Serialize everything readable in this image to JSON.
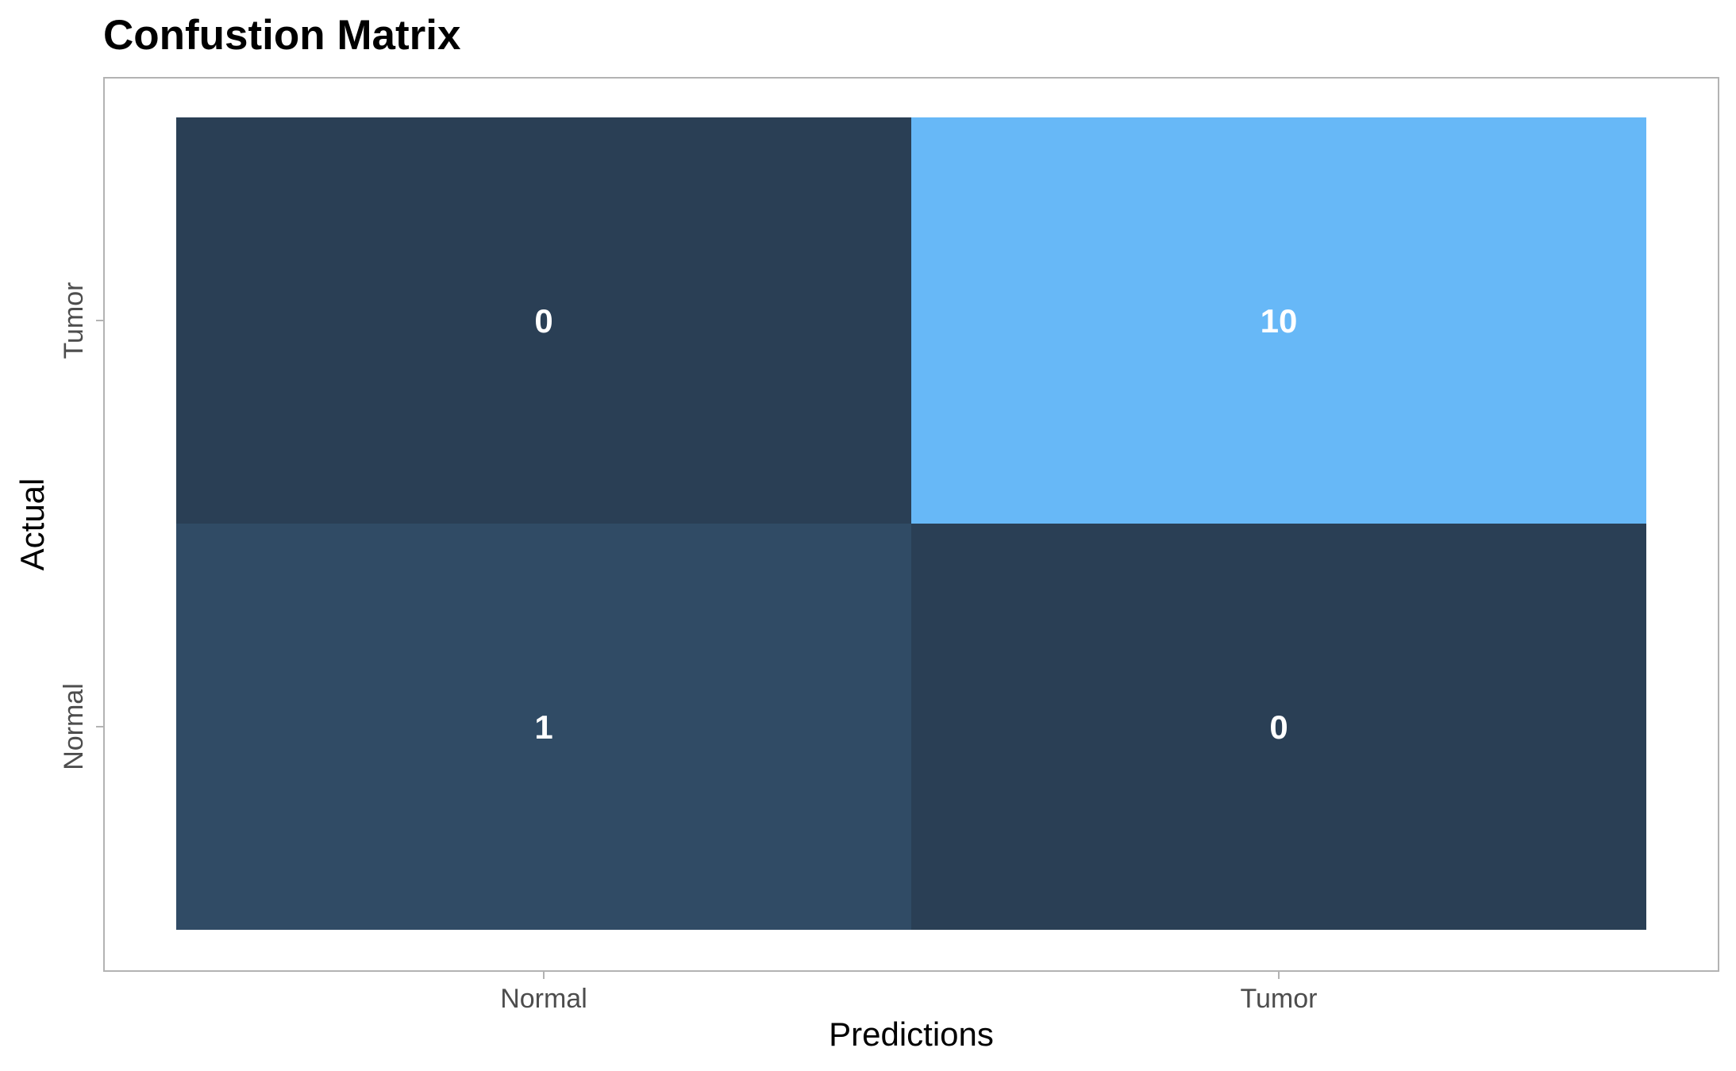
{
  "chart_data": {
    "type": "heatmap",
    "title": "Confustion Matrix",
    "xlabel": "Predictions",
    "ylabel": "Actual",
    "x_categories": [
      "Normal",
      "Tumor"
    ],
    "y_categories": [
      "Normal",
      "Tumor"
    ],
    "cells": [
      {
        "actual": "Tumor",
        "predicted": "Normal",
        "value": 0
      },
      {
        "actual": "Tumor",
        "predicted": "Tumor",
        "value": 10
      },
      {
        "actual": "Normal",
        "predicted": "Normal",
        "value": 1
      },
      {
        "actual": "Normal",
        "predicted": "Tumor",
        "value": 0
      }
    ],
    "color_scale": {
      "low": "#2a3f55",
      "high": "#67b8f7"
    },
    "grid": false,
    "legend": "none"
  }
}
